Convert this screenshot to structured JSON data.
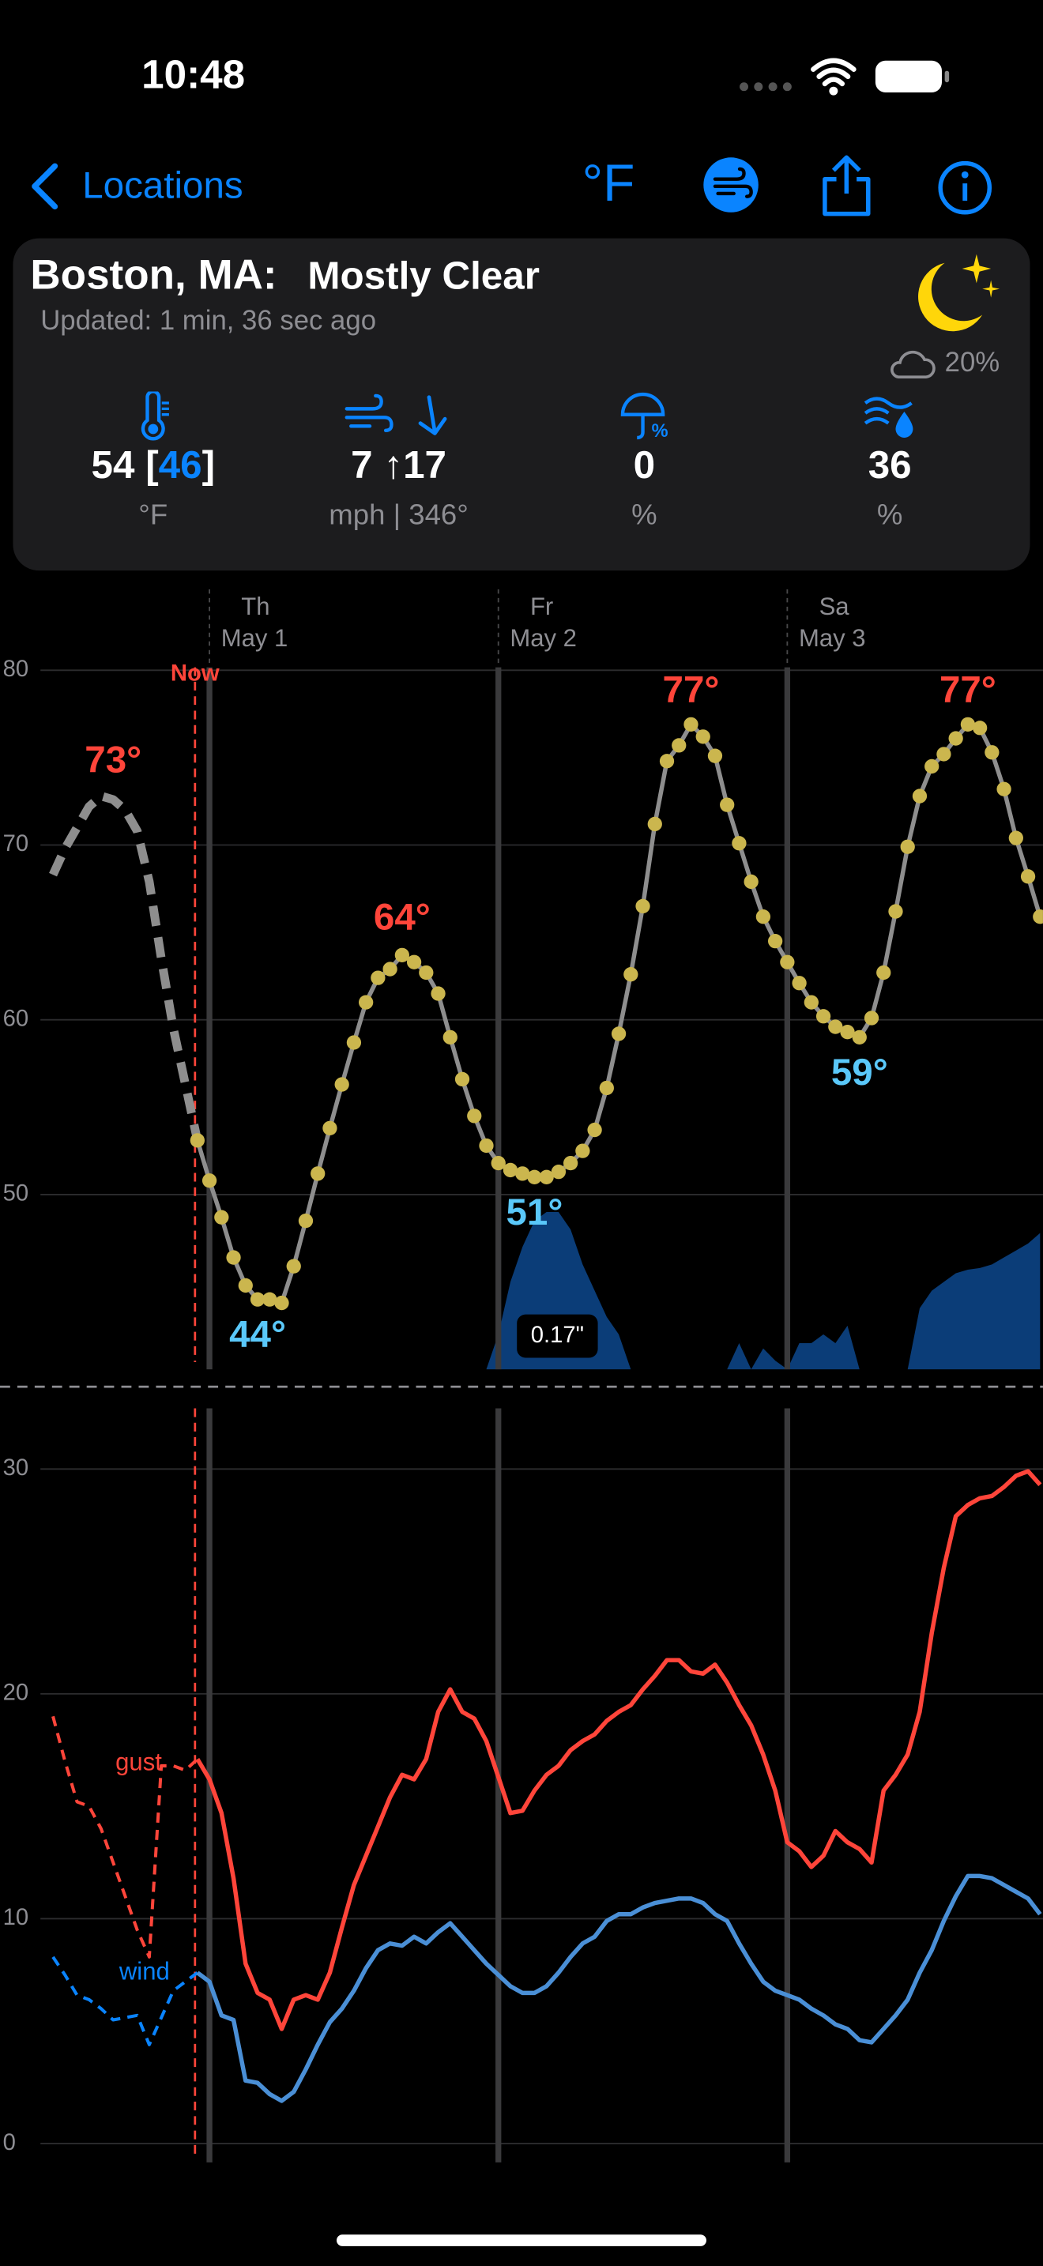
{
  "status_bar": {
    "time": "10:48"
  },
  "nav": {
    "back": "Locations",
    "units": "°F"
  },
  "summary": {
    "location": "Boston, MA:",
    "condition": "Mostly Clear",
    "updated": "Updated: 1 min, 36 sec ago",
    "cloud_cover": "20%",
    "temperature": {
      "value": 54,
      "feels_like": 46,
      "unit": "°F"
    },
    "wind": {
      "speed": 7,
      "gust": 17,
      "unit": "mph",
      "direction": {
        "value": 346,
        "label": "346°"
      }
    },
    "precipitation": {
      "value": 0,
      "unit": "%"
    },
    "humidity": {
      "value": 36,
      "unit": "%"
    }
  },
  "chart_data": [
    {
      "type": "line",
      "xlim": [
        -17.4,
        69.24
      ],
      "ylim": [
        40,
        80
      ],
      "yticks": [
        50,
        60,
        70,
        80
      ],
      "y2lim": [
        0,
        0.4
      ],
      "grid": true,
      "now_label": "Now",
      "now_x": -1.2,
      "days": [
        {
          "x": 0,
          "weekday": "Th",
          "date": "May 1"
        },
        {
          "x": 24,
          "weekday": "Fr",
          "date": "May 2"
        },
        {
          "x": 48,
          "weekday": "Sa",
          "date": "May 3"
        }
      ],
      "series": [
        {
          "type": "area",
          "axis": "y2",
          "color": "#0b3d78",
          "x": [
            22,
            23,
            24,
            25,
            26,
            27,
            28,
            29,
            30,
            31,
            32,
            33,
            34,
            35,
            36,
            37,
            38,
            39,
            40,
            41,
            42,
            43,
            44,
            45,
            46,
            47,
            48,
            49,
            50,
            51,
            52,
            53,
            54,
            55,
            56,
            57,
            58,
            59,
            60,
            61,
            62,
            63,
            64,
            65,
            66,
            67,
            68,
            69
          ],
          "values": [
            0,
            0,
            0.02,
            0.05,
            0.07,
            0.085,
            0.09,
            0.09,
            0.08,
            0.06,
            0.045,
            0.03,
            0.02,
            0,
            0,
            0,
            0,
            0,
            0,
            0,
            0,
            0,
            0.015,
            0,
            0.012,
            0.005,
            0,
            0.015,
            0.015,
            0.02,
            0.015,
            0.025,
            0,
            0,
            0,
            0,
            0,
            0.035,
            0.045,
            0.05,
            0.055,
            0.057,
            0.058,
            0.06,
            0.064,
            0.068,
            0.072,
            0.078
          ]
        },
        {
          "type": "line",
          "style": "dashed",
          "color": "#8e8e8e",
          "x": [
            -13,
            -12,
            -11,
            -10,
            -9,
            -8,
            -7,
            -6,
            -5,
            -4,
            -3,
            -2,
            -1
          ],
          "values": [
            68.3,
            69.8,
            71.0,
            72.2,
            72.8,
            72.6,
            72.0,
            70.8,
            67.9,
            63.5,
            59.5,
            56.3,
            53.1
          ]
        },
        {
          "type": "line",
          "style": "solid",
          "color": "#8e8e8e",
          "marker_color": "#cbb64e",
          "x": [
            -1,
            0,
            1,
            2,
            3,
            4,
            5,
            6,
            7,
            8,
            9,
            10,
            11,
            12,
            13,
            14,
            15,
            16,
            17,
            18,
            19,
            20,
            21,
            22,
            23,
            24,
            25,
            26,
            27,
            28,
            29,
            30,
            31,
            32,
            33,
            34,
            35,
            36,
            37,
            38,
            39,
            40,
            41,
            42,
            43,
            44,
            45,
            46,
            47,
            48,
            49,
            50,
            51,
            52,
            53,
            54,
            55,
            56,
            57,
            58,
            59,
            60,
            61,
            62,
            63,
            64,
            65,
            66,
            67,
            68,
            69
          ],
          "values": [
            53.1,
            50.8,
            48.7,
            46.4,
            44.8,
            44.0,
            44.0,
            43.8,
            45.9,
            48.5,
            51.2,
            53.8,
            56.3,
            58.7,
            61.0,
            62.4,
            62.9,
            63.7,
            63.3,
            62.7,
            61.5,
            59.0,
            56.6,
            54.5,
            52.8,
            51.8,
            51.4,
            51.2,
            51.0,
            51.0,
            51.3,
            51.8,
            52.5,
            53.7,
            56.1,
            59.2,
            62.6,
            66.5,
            71.2,
            74.8,
            75.7,
            76.9,
            76.2,
            75.1,
            72.3,
            70.1,
            67.9,
            65.9,
            64.5,
            63.3,
            62.1,
            61.0,
            60.2,
            59.6,
            59.3,
            59.0,
            60.1,
            62.7,
            66.2,
            69.9,
            72.8,
            74.5,
            75.2,
            76.1,
            76.9,
            76.7,
            75.3,
            73.2,
            70.4,
            68.2,
            65.9
          ]
        }
      ],
      "annotations": [
        {
          "x": -8,
          "value": 73,
          "label": "73°",
          "color": "#ff453a",
          "position": "above"
        },
        {
          "x": 16,
          "value": 64,
          "label": "64°",
          "color": "#ff453a",
          "position": "above"
        },
        {
          "x": 40,
          "value": 77,
          "label": "77°",
          "color": "#ff453a",
          "position": "above"
        },
        {
          "x": 63,
          "value": 77,
          "label": "77°",
          "color": "#ff453a",
          "position": "above"
        },
        {
          "x": 4,
          "value": 44,
          "label": "44°",
          "color": "#5ac8fa",
          "position": "below"
        },
        {
          "x": 27,
          "value": 51,
          "label": "51°",
          "color": "#5ac8fa",
          "position": "below"
        },
        {
          "x": 54,
          "value": 59,
          "label": "59°",
          "color": "#5ac8fa",
          "position": "below"
        }
      ],
      "precip_label": {
        "x": 28.9,
        "value": 0.17,
        "label": "0.17\""
      }
    },
    {
      "type": "line",
      "xlim": [
        -17.4,
        69.24
      ],
      "ylim": [
        0,
        30
      ],
      "yticks": [
        0,
        10,
        20,
        30
      ],
      "grid": true,
      "series": [
        {
          "type": "line",
          "name": "gust",
          "style": "dashed",
          "color": "#ff453a",
          "x": [
            -13,
            -12,
            -11,
            -10,
            -9,
            -8,
            -7,
            -6,
            -5,
            -4,
            -3,
            -2,
            -1
          ],
          "values": [
            19.0,
            17.0,
            15.2,
            15.0,
            14.0,
            12.5,
            11.0,
            9.5,
            8.3,
            16.8,
            16.8,
            16.6,
            17.1
          ]
        },
        {
          "type": "line",
          "name": "wind",
          "style": "dashed",
          "color": "#0a84ff",
          "x": [
            -13,
            -12,
            -11,
            -10,
            -9,
            -8,
            -7,
            -6,
            -5,
            -4,
            -3,
            -2,
            -1
          ],
          "values": [
            8.3,
            7.5,
            6.6,
            6.4,
            6.0,
            5.5,
            5.6,
            5.7,
            4.4,
            5.6,
            6.8,
            7.2,
            7.6
          ]
        },
        {
          "type": "line",
          "style": "solid",
          "color": "#ff453a",
          "x": [
            -1,
            0,
            1,
            2,
            3,
            4,
            5,
            6,
            7,
            8,
            9,
            10,
            11,
            12,
            13,
            14,
            15,
            16,
            17,
            18,
            19,
            20,
            21,
            22,
            23,
            24,
            25,
            26,
            27,
            28,
            29,
            30,
            31,
            32,
            33,
            34,
            35,
            36,
            37,
            38,
            39,
            40,
            41,
            42,
            43,
            44,
            45,
            46,
            47,
            48,
            49,
            50,
            51,
            52,
            53,
            54,
            55,
            56,
            57,
            58,
            59,
            60,
            61,
            62,
            63,
            64,
            65,
            66,
            67,
            68,
            69
          ],
          "values": [
            17.1,
            16.2,
            14.7,
            11.8,
            8.0,
            6.7,
            6.4,
            5.1,
            6.4,
            6.6,
            6.4,
            7.6,
            9.6,
            11.5,
            12.8,
            14.1,
            15.4,
            16.4,
            16.2,
            17.1,
            19.2,
            20.2,
            19.2,
            18.9,
            17.9,
            16.3,
            14.7,
            14.8,
            15.7,
            16.4,
            16.8,
            17.5,
            17.9,
            18.2,
            18.8,
            19.2,
            19.5,
            20.2,
            20.8,
            21.5,
            21.5,
            21.0,
            20.9,
            21.3,
            20.5,
            19.5,
            18.6,
            17.3,
            15.7,
            13.4,
            13.0,
            12.3,
            12.8,
            13.9,
            13.4,
            13.1,
            12.5,
            15.7,
            16.4,
            17.3,
            19.2,
            22.7,
            25.6,
            27.9,
            28.4,
            28.7,
            28.8,
            29.2,
            29.7,
            29.9,
            29.3
          ]
        },
        {
          "type": "line",
          "style": "solid",
          "color": "#4a8fd6",
          "x": [
            -1,
            0,
            1,
            2,
            3,
            4,
            5,
            6,
            7,
            8,
            9,
            10,
            11,
            12,
            13,
            14,
            15,
            16,
            17,
            18,
            19,
            20,
            21,
            22,
            23,
            24,
            25,
            26,
            27,
            28,
            29,
            30,
            31,
            32,
            33,
            34,
            35,
            36,
            37,
            38,
            39,
            40,
            41,
            42,
            43,
            44,
            45,
            46,
            47,
            48,
            49,
            50,
            51,
            52,
            53,
            54,
            55,
            56,
            57,
            58,
            59,
            60,
            61,
            62,
            63,
            64,
            65,
            66,
            67,
            68,
            69
          ],
          "values": [
            7.6,
            7.2,
            5.7,
            5.5,
            2.8,
            2.7,
            2.2,
            1.9,
            2.3,
            3.3,
            4.4,
            5.4,
            6.0,
            6.8,
            7.8,
            8.6,
            8.9,
            8.8,
            9.2,
            8.9,
            9.4,
            9.8,
            9.2,
            8.6,
            8.0,
            7.5,
            7.0,
            6.7,
            6.7,
            7.0,
            7.6,
            8.3,
            8.9,
            9.2,
            9.9,
            10.2,
            10.2,
            10.5,
            10.7,
            10.8,
            10.9,
            10.9,
            10.7,
            10.2,
            9.9,
            8.9,
            8.0,
            7.2,
            6.8,
            6.6,
            6.4,
            6.0,
            5.7,
            5.3,
            5.1,
            4.6,
            4.5,
            5.1,
            5.7,
            6.4,
            7.6,
            8.6,
            9.9,
            11.0,
            11.9,
            11.9,
            11.8,
            11.5,
            11.2,
            10.9,
            10.2
          ]
        }
      ]
    }
  ]
}
